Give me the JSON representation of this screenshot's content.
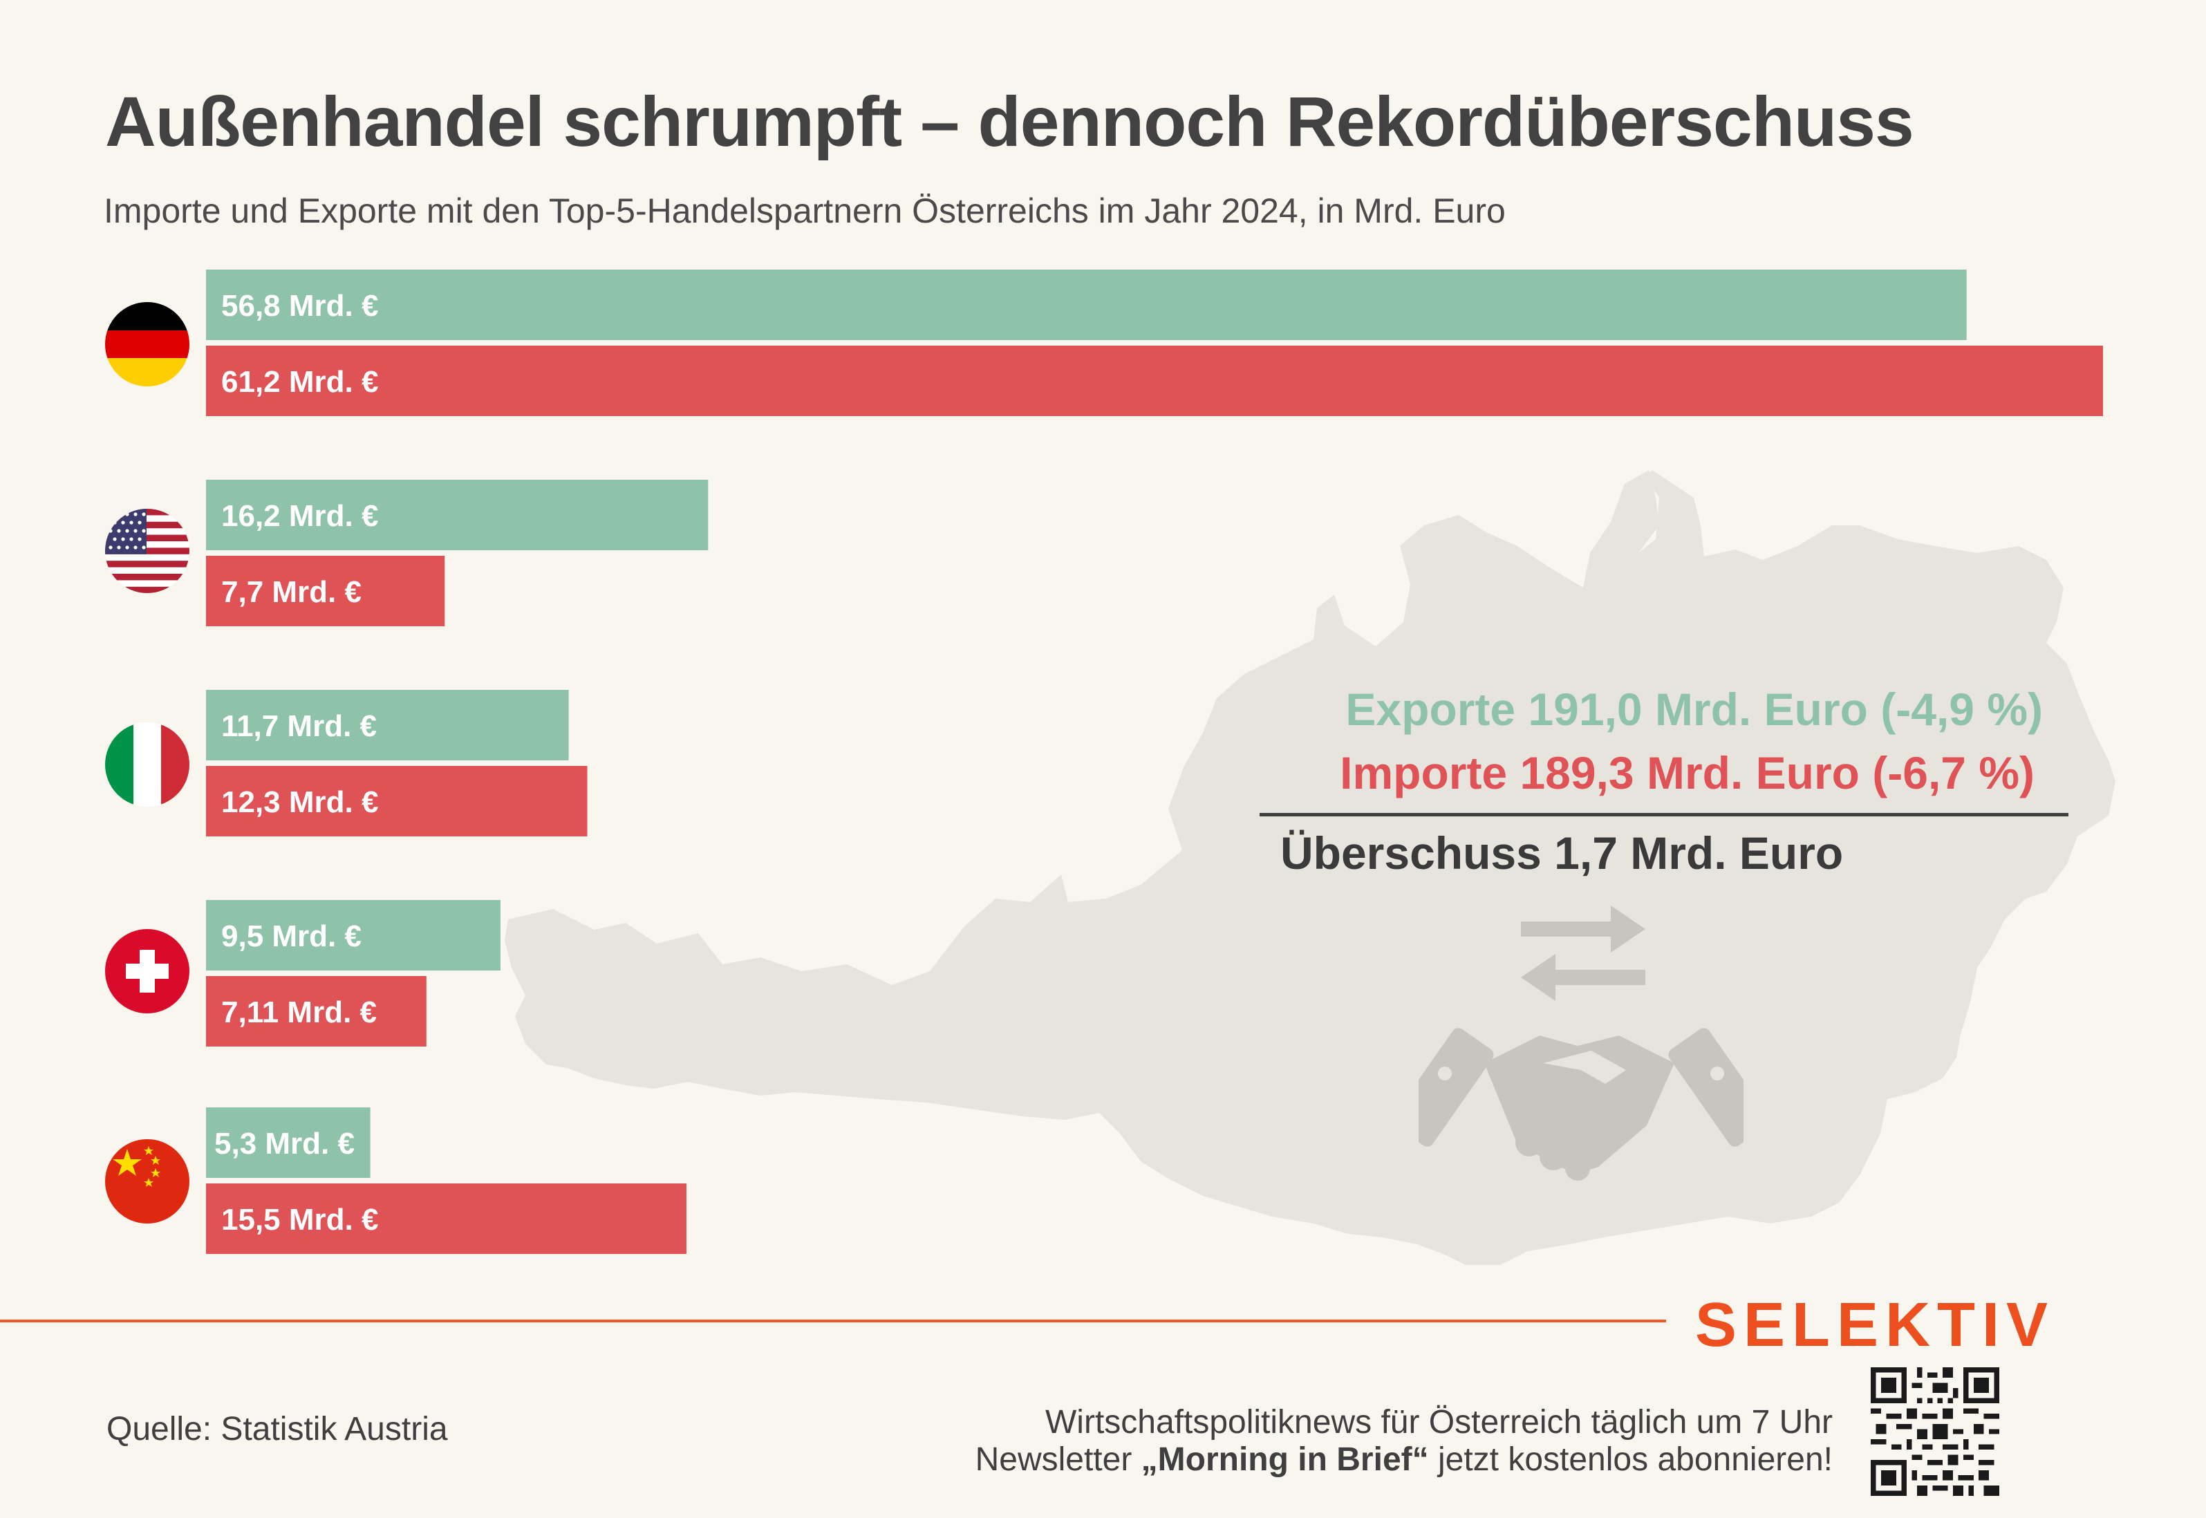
{
  "title": "Außenhandel schrumpft – dennoch Rekordüberschuss",
  "subtitle": "Importe und Exporte mit den Top-5-Handelspartnern Österreichs im Jahr 2024, in Mrd. Euro",
  "chart_data": {
    "type": "bar",
    "orientation": "horizontal",
    "title": "Außenhandel schrumpft – dennoch Rekordüberschuss",
    "subtitle": "Importe und Exporte mit den Top-5-Handelspartnern Österreichs im Jahr 2024, in Mrd. Euro",
    "categories": [
      "Deutschland",
      "USA",
      "Italien",
      "Schweiz",
      "China"
    ],
    "category_icons": [
      "flag-germany",
      "flag-usa",
      "flag-italy",
      "flag-switzerland",
      "flag-china"
    ],
    "series": [
      {
        "key": "exports",
        "color": "#8fc3a9",
        "values": [
          56.8,
          16.2,
          11.7,
          9.5,
          5.3
        ],
        "labels": [
          "56,8 Mrd. €",
          "16,2 Mrd. €",
          "11,7 Mrd. €",
          "9,5 Mrd. €",
          "5,3 Mrd. €"
        ]
      },
      {
        "key": "imports",
        "color": "#df5356",
        "values": [
          61.2,
          7.7,
          12.3,
          7.11,
          15.5
        ],
        "labels": [
          "61,2 Mrd. €",
          "7,7 Mrd. €",
          "12,3 Mrd. €",
          "7,11 Mrd. €",
          "15,5 Mrd. €"
        ]
      }
    ],
    "xlim": [
      0,
      61.2
    ],
    "grid": false,
    "legend": "none"
  },
  "summary": {
    "exports": "Exporte 191,0 Mrd. Euro (-4,9 %)",
    "imports": "Importe 189,3 Mrd. Euro (-6,7 %)",
    "surplus": "Überschuss 1,7 Mrd. Euro"
  },
  "footer": {
    "source": "Quelle: Statistik Austria",
    "brand": "SELEKTIV",
    "newsletter_line1": "Wirtschaftspolitiknews für Österreich täglich um 7 Uhr",
    "newsletter_line2_pre": "Newsletter ",
    "newsletter_line2_bold": "„Morning in Brief“",
    "newsletter_line2_post": " jetzt kostenlos abonnieren!"
  },
  "colors": {
    "background": "#f8f6ef",
    "exports": "#8fc3a9",
    "imports": "#df5356",
    "map": "#e6e4dd",
    "icon": "#c6c5c0",
    "brand": "#ee4f1f"
  },
  "icons": [
    "austria-map-shape",
    "exchange-arrows-icon",
    "handshake-icon",
    "qr-code-icon"
  ]
}
